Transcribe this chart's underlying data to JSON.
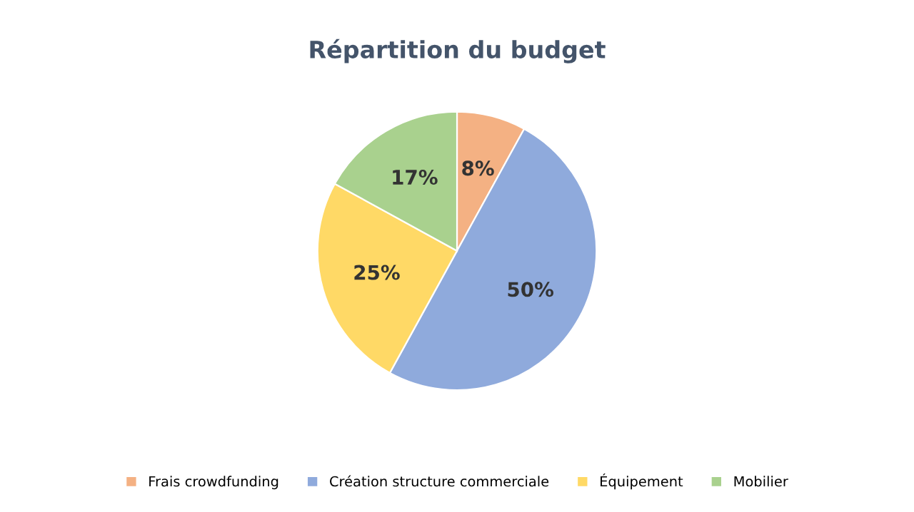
{
  "chart_data": {
    "type": "pie",
    "title": "Répartition du budget",
    "categories": [
      "Frais crowdfunding",
      "Création structure commerciale",
      "Équipement",
      "Mobilier"
    ],
    "values": [
      8,
      50,
      25,
      17
    ],
    "colors": [
      "#f4b183",
      "#8faadc",
      "#ffd966",
      "#a9d18e"
    ],
    "value_labels": [
      "8%",
      "50%",
      "25%",
      "17%"
    ],
    "legend": "bottom"
  }
}
